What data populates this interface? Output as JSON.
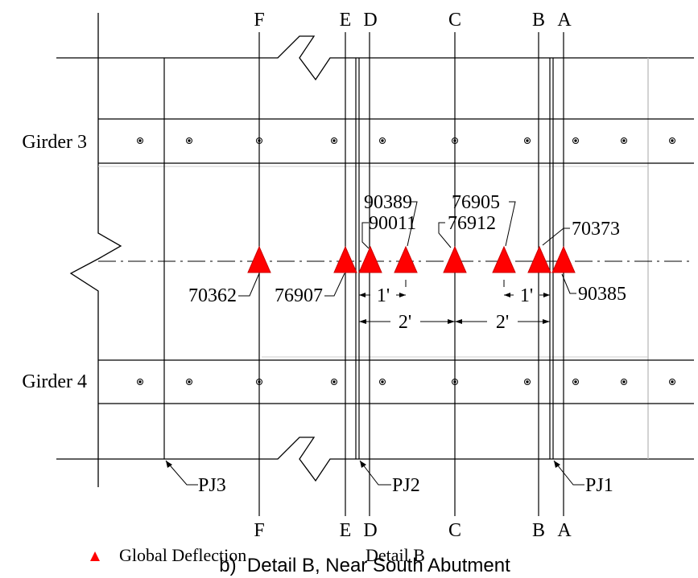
{
  "grid_lines": [
    "F",
    "E",
    "D",
    "C",
    "B",
    "A"
  ],
  "girders": [
    "Girder 3",
    "Girder 4"
  ],
  "sensors": [
    "70362",
    "76907",
    "90011",
    "90389",
    "76912",
    "76905",
    "70373",
    "90385"
  ],
  "dimensions": {
    "left_short": "1'",
    "right_short": "1'",
    "left_long": "2'",
    "right_long": "2'"
  },
  "joints": [
    "PJ3",
    "PJ2",
    "PJ1"
  ],
  "legend": {
    "marker_label": "Global Deflection",
    "detail_label": "Detail B",
    "marker_color": "#ff0000"
  },
  "caption": "b)  Detail B, Near South Abutment"
}
